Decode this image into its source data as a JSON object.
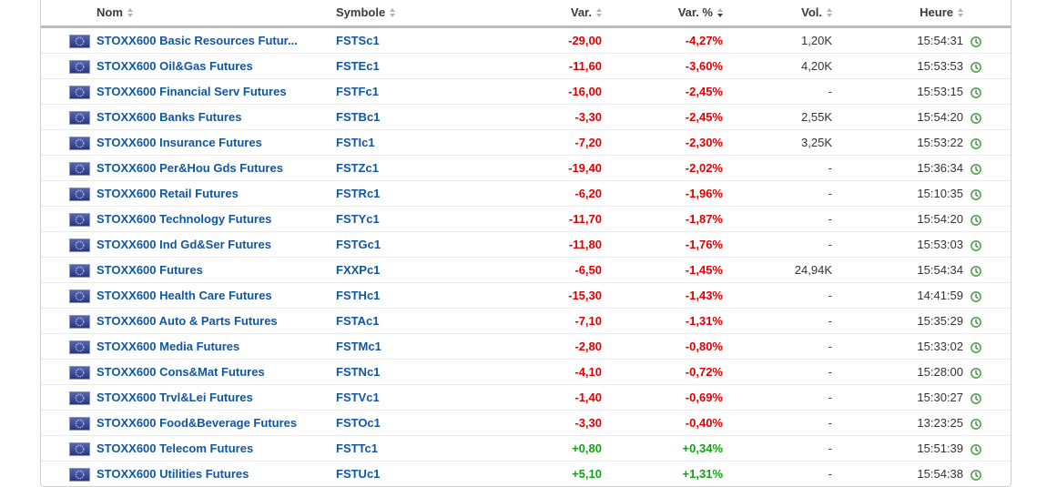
{
  "table": {
    "columns": [
      {
        "key": "nom",
        "label": "Nom",
        "sort": "none"
      },
      {
        "key": "symbole",
        "label": "Symbole",
        "sort": "none"
      },
      {
        "key": "var",
        "label": "Var.",
        "sort": "none"
      },
      {
        "key": "var-pct",
        "label": "Var. %",
        "sort": "desc"
      },
      {
        "key": "vol",
        "label": "Vol.",
        "sort": "none"
      },
      {
        "key": "heure",
        "label": "Heure",
        "sort": "none"
      }
    ],
    "rows": [
      {
        "flag": "eu-flag",
        "name": "STOXX600 Basic Resources Futur...",
        "symbol": "FSTSc1",
        "change": "-29,00",
        "change_pct": "-4,27%",
        "volume": "1,20K",
        "time": "15:54:31",
        "trend": "down",
        "clock_icon": "realtime-clock"
      },
      {
        "flag": "eu-flag",
        "name": "STOXX600 Oil&Gas Futures",
        "symbol": "FSTEc1",
        "change": "-11,60",
        "change_pct": "-3,60%",
        "volume": "4,20K",
        "time": "15:53:53",
        "trend": "down",
        "clock_icon": "realtime-clock"
      },
      {
        "flag": "eu-flag",
        "name": "STOXX600 Financial Serv Futures",
        "symbol": "FSTFc1",
        "change": "-16,00",
        "change_pct": "-2,45%",
        "volume": "-",
        "time": "15:53:15",
        "trend": "down",
        "clock_icon": "realtime-clock"
      },
      {
        "flag": "eu-flag",
        "name": "STOXX600 Banks Futures",
        "symbol": "FSTBc1",
        "change": "-3,30",
        "change_pct": "-2,45%",
        "volume": "2,55K",
        "time": "15:54:20",
        "trend": "down",
        "clock_icon": "realtime-clock"
      },
      {
        "flag": "eu-flag",
        "name": "STOXX600 Insurance Futures",
        "symbol": "FSTIc1",
        "change": "-7,20",
        "change_pct": "-2,30%",
        "volume": "3,25K",
        "time": "15:53:22",
        "trend": "down",
        "clock_icon": "realtime-clock"
      },
      {
        "flag": "eu-flag",
        "name": "STOXX600 Per&Hou Gds Futures",
        "symbol": "FSTZc1",
        "change": "-19,40",
        "change_pct": "-2,02%",
        "volume": "-",
        "time": "15:36:34",
        "trend": "down",
        "clock_icon": "realtime-clock"
      },
      {
        "flag": "eu-flag",
        "name": "STOXX600 Retail Futures",
        "symbol": "FSTRc1",
        "change": "-6,20",
        "change_pct": "-1,96%",
        "volume": "-",
        "time": "15:10:35",
        "trend": "down",
        "clock_icon": "realtime-clock"
      },
      {
        "flag": "eu-flag",
        "name": "STOXX600 Technology Futures",
        "symbol": "FSTYc1",
        "change": "-11,70",
        "change_pct": "-1,87%",
        "volume": "-",
        "time": "15:54:20",
        "trend": "down",
        "clock_icon": "realtime-clock"
      },
      {
        "flag": "eu-flag",
        "name": "STOXX600 Ind Gd&Ser Futures",
        "symbol": "FSTGc1",
        "change": "-11,80",
        "change_pct": "-1,76%",
        "volume": "-",
        "time": "15:53:03",
        "trend": "down",
        "clock_icon": "realtime-clock"
      },
      {
        "flag": "eu-flag",
        "name": "STOXX600 Futures",
        "symbol": "FXXPc1",
        "change": "-6,50",
        "change_pct": "-1,45%",
        "volume": "24,94K",
        "time": "15:54:34",
        "trend": "down",
        "clock_icon": "realtime-clock"
      },
      {
        "flag": "eu-flag",
        "name": "STOXX600 Health Care Futures",
        "symbol": "FSTHc1",
        "change": "-15,30",
        "change_pct": "-1,43%",
        "volume": "-",
        "time": "14:41:59",
        "trend": "down",
        "clock_icon": "realtime-clock"
      },
      {
        "flag": "eu-flag",
        "name": "STOXX600 Auto & Parts Futures",
        "symbol": "FSTAc1",
        "change": "-7,10",
        "change_pct": "-1,31%",
        "volume": "-",
        "time": "15:35:29",
        "trend": "down",
        "clock_icon": "realtime-clock"
      },
      {
        "flag": "eu-flag",
        "name": "STOXX600 Media Futures",
        "symbol": "FSTMc1",
        "change": "-2,80",
        "change_pct": "-0,80%",
        "volume": "-",
        "time": "15:33:02",
        "trend": "down",
        "clock_icon": "realtime-clock"
      },
      {
        "flag": "eu-flag",
        "name": "STOXX600 Cons&Mat Futures",
        "symbol": "FSTNc1",
        "change": "-4,10",
        "change_pct": "-0,72%",
        "volume": "-",
        "time": "15:28:00",
        "trend": "down",
        "clock_icon": "realtime-clock"
      },
      {
        "flag": "eu-flag",
        "name": "STOXX600 Trvl&Lei Futures",
        "symbol": "FSTVc1",
        "change": "-1,40",
        "change_pct": "-0,69%",
        "volume": "-",
        "time": "15:30:27",
        "trend": "down",
        "clock_icon": "realtime-clock"
      },
      {
        "flag": "eu-flag",
        "name": "STOXX600 Food&Beverage Futures",
        "symbol": "FSTOc1",
        "change": "-3,30",
        "change_pct": "-0,40%",
        "volume": "-",
        "time": "13:23:25",
        "trend": "down",
        "clock_icon": "realtime-clock"
      },
      {
        "flag": "eu-flag",
        "name": "STOXX600 Telecom Futures",
        "symbol": "FSTTc1",
        "change": "+0,80",
        "change_pct": "+0,34%",
        "volume": "-",
        "time": "15:51:39",
        "trend": "up",
        "clock_icon": "realtime-clock"
      },
      {
        "flag": "eu-flag",
        "name": "STOXX600 Utilities Futures",
        "symbol": "FSTUc1",
        "change": "+5,10",
        "change_pct": "+1,31%",
        "volume": "-",
        "time": "15:54:38",
        "trend": "up",
        "clock_icon": "realtime-clock"
      }
    ]
  },
  "colors": {
    "negative": "#e00000",
    "positive": "#11a311",
    "link_blue": "#1256a0",
    "header_text": "#3a3a3a",
    "neutral_text": "#333333",
    "clock_green": "#57a957",
    "border_outer": "#cfcfcf",
    "border_header": "#bcbcbc",
    "border_row": "#e9e9e9"
  }
}
